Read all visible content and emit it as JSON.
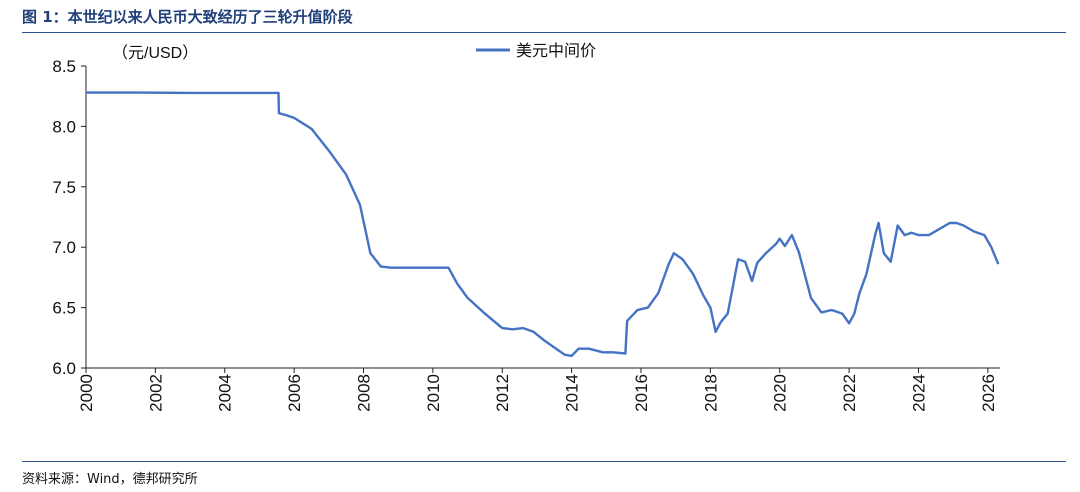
{
  "figure": {
    "title": "图 1：本世纪以来人民币大致经历了三轮升值阶段",
    "source": "资料来源：Wind，德邦研究所"
  },
  "chart_data": {
    "type": "line",
    "unit_label": "（元/USD）",
    "xlim": [
      2000,
      2026.35
    ],
    "ylim": [
      6.0,
      8.5
    ],
    "x_ticks": [
      "2000",
      "2002",
      "2004",
      "2006",
      "2008",
      "2010",
      "2012",
      "2014",
      "2016",
      "2018",
      "2020",
      "2022",
      "2024",
      "2026"
    ],
    "y_ticks": [
      "6.0",
      "6.5",
      "7.0",
      "7.5",
      "8.0",
      "8.5"
    ],
    "legend_position": "top-center",
    "grid": false,
    "line_color": "#4472c4",
    "series": [
      {
        "name": "美元中间价",
        "x": [
          2000.0,
          2001.5,
          2003.0,
          2004.5,
          2005.55,
          2005.56,
          2005.8,
          2006.0,
          2006.5,
          2007.0,
          2007.5,
          2007.9,
          2008.2,
          2008.5,
          2008.8,
          2009.5,
          2010.0,
          2010.45,
          2010.7,
          2011.0,
          2011.5,
          2012.0,
          2012.3,
          2012.6,
          2012.9,
          2013.2,
          2013.5,
          2013.8,
          2014.0,
          2014.2,
          2014.5,
          2014.9,
          2015.2,
          2015.55,
          2015.6,
          2015.9,
          2016.2,
          2016.5,
          2016.8,
          2016.95,
          2017.2,
          2017.5,
          2017.8,
          2018.0,
          2018.15,
          2018.3,
          2018.5,
          2018.8,
          2019.0,
          2019.2,
          2019.35,
          2019.6,
          2019.9,
          2020.0,
          2020.15,
          2020.35,
          2020.55,
          2020.9,
          2021.2,
          2021.5,
          2021.8,
          2022.0,
          2022.15,
          2022.3,
          2022.5,
          2022.75,
          2022.85,
          2023.0,
          2023.2,
          2023.4,
          2023.6,
          2023.8,
          2024.0,
          2024.3,
          2024.6,
          2024.9,
          2025.1,
          2025.3,
          2025.6,
          2025.9,
          2026.1,
          2026.3
        ],
        "values": [
          8.28,
          8.28,
          8.277,
          8.277,
          8.277,
          8.11,
          8.09,
          8.07,
          7.98,
          7.8,
          7.6,
          7.35,
          6.95,
          6.84,
          6.83,
          6.83,
          6.83,
          6.83,
          6.7,
          6.58,
          6.45,
          6.33,
          6.32,
          6.33,
          6.3,
          6.23,
          6.17,
          6.11,
          6.1,
          6.16,
          6.16,
          6.13,
          6.13,
          6.12,
          6.39,
          6.48,
          6.5,
          6.62,
          6.86,
          6.95,
          6.9,
          6.78,
          6.6,
          6.5,
          6.3,
          6.38,
          6.45,
          6.9,
          6.88,
          6.72,
          6.87,
          6.95,
          7.03,
          7.07,
          7.01,
          7.1,
          6.96,
          6.58,
          6.46,
          6.48,
          6.45,
          6.37,
          6.45,
          6.62,
          6.78,
          7.1,
          7.2,
          6.95,
          6.88,
          7.18,
          7.1,
          7.12,
          7.1,
          7.1,
          7.15,
          7.2,
          7.2,
          7.18,
          7.13,
          7.1,
          7.0,
          6.86
        ]
      }
    ]
  }
}
